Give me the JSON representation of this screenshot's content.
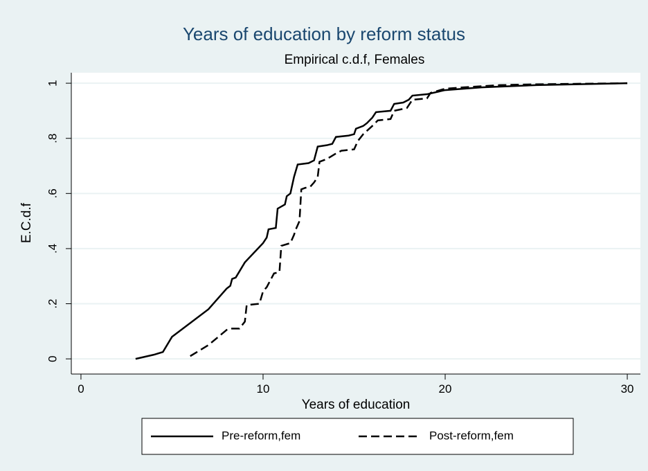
{
  "chart_data": {
    "type": "line",
    "title": "Years of education by reform status",
    "subtitle": "Empirical c.d.f, Females",
    "x_label": "Years of education",
    "y_label": "E.C.d.f",
    "xlim": [
      -0.53,
      30.72
    ],
    "xticks": [
      0,
      10,
      20,
      30
    ],
    "ylim": [
      -0.055,
      1.038
    ],
    "yticks": [
      0,
      {
        "value": 0.2,
        "label": ".2"
      },
      {
        "value": 0.4,
        "label": ".4"
      },
      {
        "value": 0.6,
        "label": ".6"
      },
      {
        "value": 0.8,
        "label": ".8"
      },
      1
    ],
    "grid": true,
    "legend": "bottom",
    "series": [
      {
        "name": "Pre-reform,fem",
        "color": "#000000",
        "dash": "solid",
        "x": [
          3,
          4,
          4.5,
          5,
          6,
          7,
          8,
          8.2,
          8.3,
          8.5,
          9,
          10,
          10.2,
          10.3,
          10.7,
          10.8,
          11.2,
          11.3,
          11.5,
          11.7,
          11.9,
          12.5,
          12.8,
          13,
          13.5,
          13.8,
          14,
          14.7,
          15,
          15.1,
          15.5,
          15.7,
          16,
          16.2,
          17,
          17.2,
          17.7,
          18,
          18.2,
          19,
          20,
          22,
          25,
          30
        ],
        "values": [
          0,
          0.015,
          0.025,
          0.08,
          0.13,
          0.18,
          0.255,
          0.265,
          0.29,
          0.295,
          0.35,
          0.42,
          0.44,
          0.47,
          0.475,
          0.545,
          0.56,
          0.59,
          0.6,
          0.66,
          0.705,
          0.71,
          0.72,
          0.77,
          0.775,
          0.78,
          0.805,
          0.81,
          0.815,
          0.835,
          0.845,
          0.855,
          0.875,
          0.895,
          0.9,
          0.925,
          0.93,
          0.94,
          0.955,
          0.96,
          0.975,
          0.985,
          0.993,
          1.0
        ]
      },
      {
        "name": "Post-reform,fem",
        "color": "#000000",
        "dash": "dashed",
        "x": [
          6,
          7,
          8,
          8.2,
          8.7,
          9,
          9.1,
          9.8,
          10,
          10.2,
          10.6,
          10.9,
          11,
          11.5,
          11.7,
          11.8,
          12,
          12.1,
          12.3,
          12.6,
          12.8,
          13,
          13.1,
          13.5,
          14,
          14.3,
          15,
          15.2,
          15.5,
          16,
          16.3,
          17,
          17.2,
          17.9,
          18.2,
          19,
          19.2,
          20,
          21,
          23,
          25,
          30
        ],
        "values": [
          0.01,
          0.05,
          0.105,
          0.11,
          0.11,
          0.135,
          0.195,
          0.2,
          0.245,
          0.26,
          0.31,
          0.315,
          0.41,
          0.42,
          0.45,
          0.47,
          0.5,
          0.615,
          0.62,
          0.625,
          0.64,
          0.66,
          0.715,
          0.725,
          0.745,
          0.755,
          0.76,
          0.79,
          0.815,
          0.845,
          0.865,
          0.87,
          0.9,
          0.91,
          0.94,
          0.945,
          0.965,
          0.98,
          0.985,
          0.993,
          0.996,
          1.0
        ]
      }
    ]
  }
}
